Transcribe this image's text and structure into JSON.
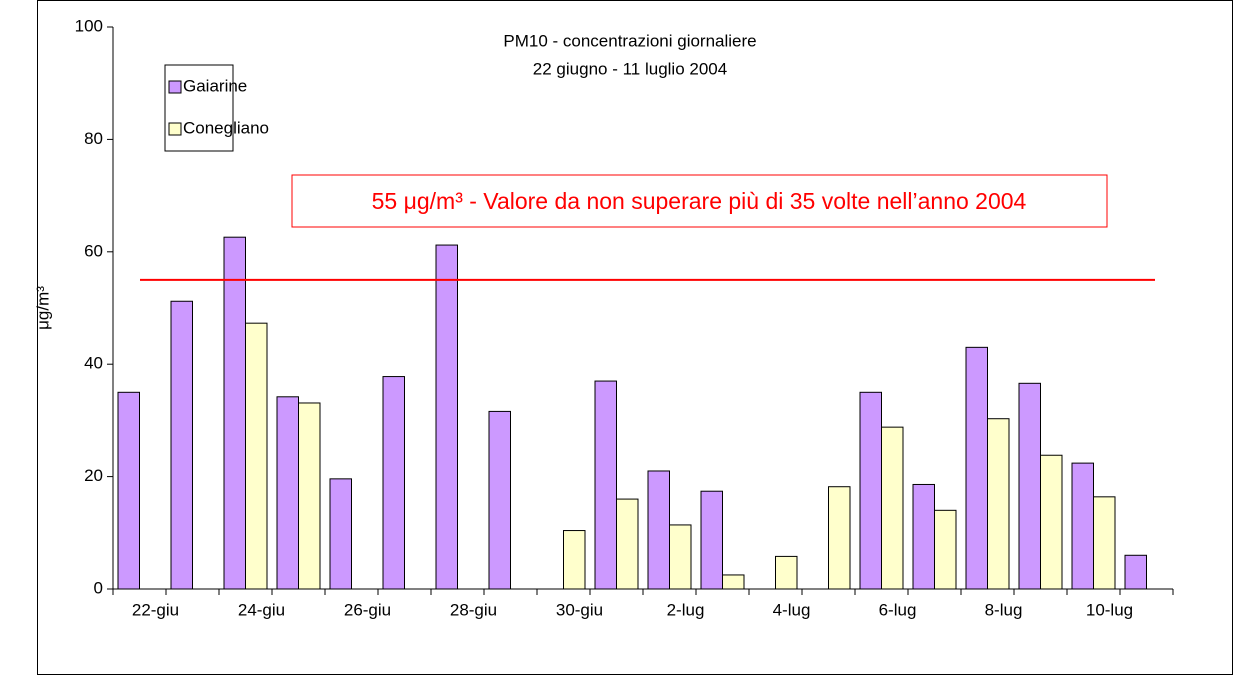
{
  "chart_data": {
    "type": "bar",
    "title": "PM10 - concentrazioni giornaliere",
    "subtitle": "22 giugno - 11 luglio 2004",
    "y_label": "μg/m³",
    "categories": [
      "22-giu",
      null,
      "24-giu",
      null,
      "26-giu",
      null,
      "28-giu",
      null,
      "30-giu",
      null,
      "2-lug",
      null,
      "4-lug",
      null,
      "6-lug",
      null,
      "8-lug",
      null,
      "10-lug",
      null
    ],
    "series": [
      {
        "name": "Gaiarine",
        "color": "#cc99ff",
        "values": [
          35,
          51.2,
          62.6,
          34.2,
          19.6,
          37.8,
          61.2,
          31.6,
          null,
          37,
          21,
          17.4,
          null,
          null,
          35,
          18.6,
          43,
          36.6,
          22.4,
          6
        ]
      },
      {
        "name": "Conegliano",
        "color": "#ffffcc",
        "values": [
          null,
          null,
          47.3,
          33.1,
          null,
          null,
          null,
          null,
          10.4,
          16,
          11.4,
          2.5,
          5.8,
          18.2,
          28.8,
          14,
          30.3,
          23.8,
          16.4,
          null
        ]
      }
    ],
    "ylim": [
      0,
      100
    ],
    "yticks": [
      0,
      20,
      40,
      60,
      80,
      100
    ],
    "legend": "top-left",
    "reference_line": {
      "value": 55,
      "color": "#ff0000",
      "label": "55 μg/m³ - Valore da non superare più di 35 volte nell’anno 2004"
    }
  }
}
